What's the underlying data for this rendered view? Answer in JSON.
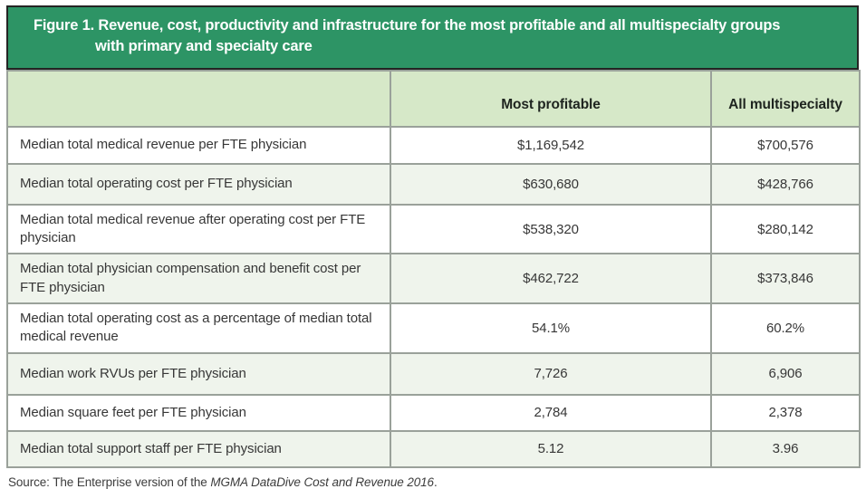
{
  "title": {
    "line1": "Figure 1. Revenue, cost, productivity and infrastructure for the most profitable and all multispecialty groups",
    "line2": "with primary and specialty care"
  },
  "table": {
    "headers": [
      "",
      "Most profitable",
      "All multispecialty"
    ],
    "rows": [
      {
        "label": "Median total medical revenue per FTE physician",
        "most_profitable": "$1,169,542",
        "all_multispecialty": "$700,576"
      },
      {
        "label": "Median total operating cost per FTE physician",
        "most_profitable": "$630,680",
        "all_multispecialty": "$428,766"
      },
      {
        "label": "Median total medical revenue after operating cost per FTE physician",
        "most_profitable": "$538,320",
        "all_multispecialty": "$280,142"
      },
      {
        "label": "Median total physician compensation and benefit cost per FTE physician",
        "most_profitable": "$462,722",
        "all_multispecialty": "$373,846"
      },
      {
        "label": "Median total operating cost as a percentage of median total medical revenue",
        "most_profitable": "54.1%",
        "all_multispecialty": "60.2%"
      },
      {
        "label": "Median work RVUs per FTE physician",
        "most_profitable": "7,726",
        "all_multispecialty": "6,906"
      },
      {
        "label": "Median square feet per FTE physician",
        "most_profitable": "2,784",
        "all_multispecialty": "2,378"
      },
      {
        "label": "Median total support staff per FTE physician",
        "most_profitable": "5.12",
        "all_multispecialty": "3.96"
      }
    ]
  },
  "source": {
    "prefix": "Source: The Enterprise version of the ",
    "italic": "MGMA DataDive Cost and Revenue 2016",
    "suffix": "."
  },
  "colors": {
    "title_bg": "#2d9465",
    "title_border": "#242424",
    "title_text": "#ffffff",
    "header_bg": "#d6e8c8",
    "row_alt_bg": "#eff4ec",
    "grid_border": "#9aa19a",
    "body_text": "#373737"
  },
  "chart_data": {
    "type": "table",
    "title": "Figure 1. Revenue, cost, productivity and infrastructure for the most profitable and all multispecialty groups with primary and specialty care",
    "categories": [
      "Median total medical revenue per FTE physician",
      "Median total operating cost per FTE physician",
      "Median total medical revenue after operating cost per FTE physician",
      "Median total physician compensation and benefit cost per FTE physician",
      "Median total operating cost as a percentage of median total medical revenue",
      "Median work RVUs per FTE physician",
      "Median square feet per FTE physician",
      "Median total support staff per FTE physician"
    ],
    "series": [
      {
        "name": "Most profitable",
        "values": [
          1169542,
          630680,
          538320,
          462722,
          54.1,
          7726,
          2784,
          5.12
        ]
      },
      {
        "name": "All multispecialty",
        "values": [
          700576,
          428766,
          280142,
          373846,
          60.2,
          6906,
          2378,
          3.96
        ]
      }
    ],
    "value_formats": [
      "$",
      "$",
      "$",
      "$",
      "%",
      "number",
      "number",
      "number"
    ],
    "source": "Source: The Enterprise version of the MGMA DataDive Cost and Revenue 2016."
  }
}
